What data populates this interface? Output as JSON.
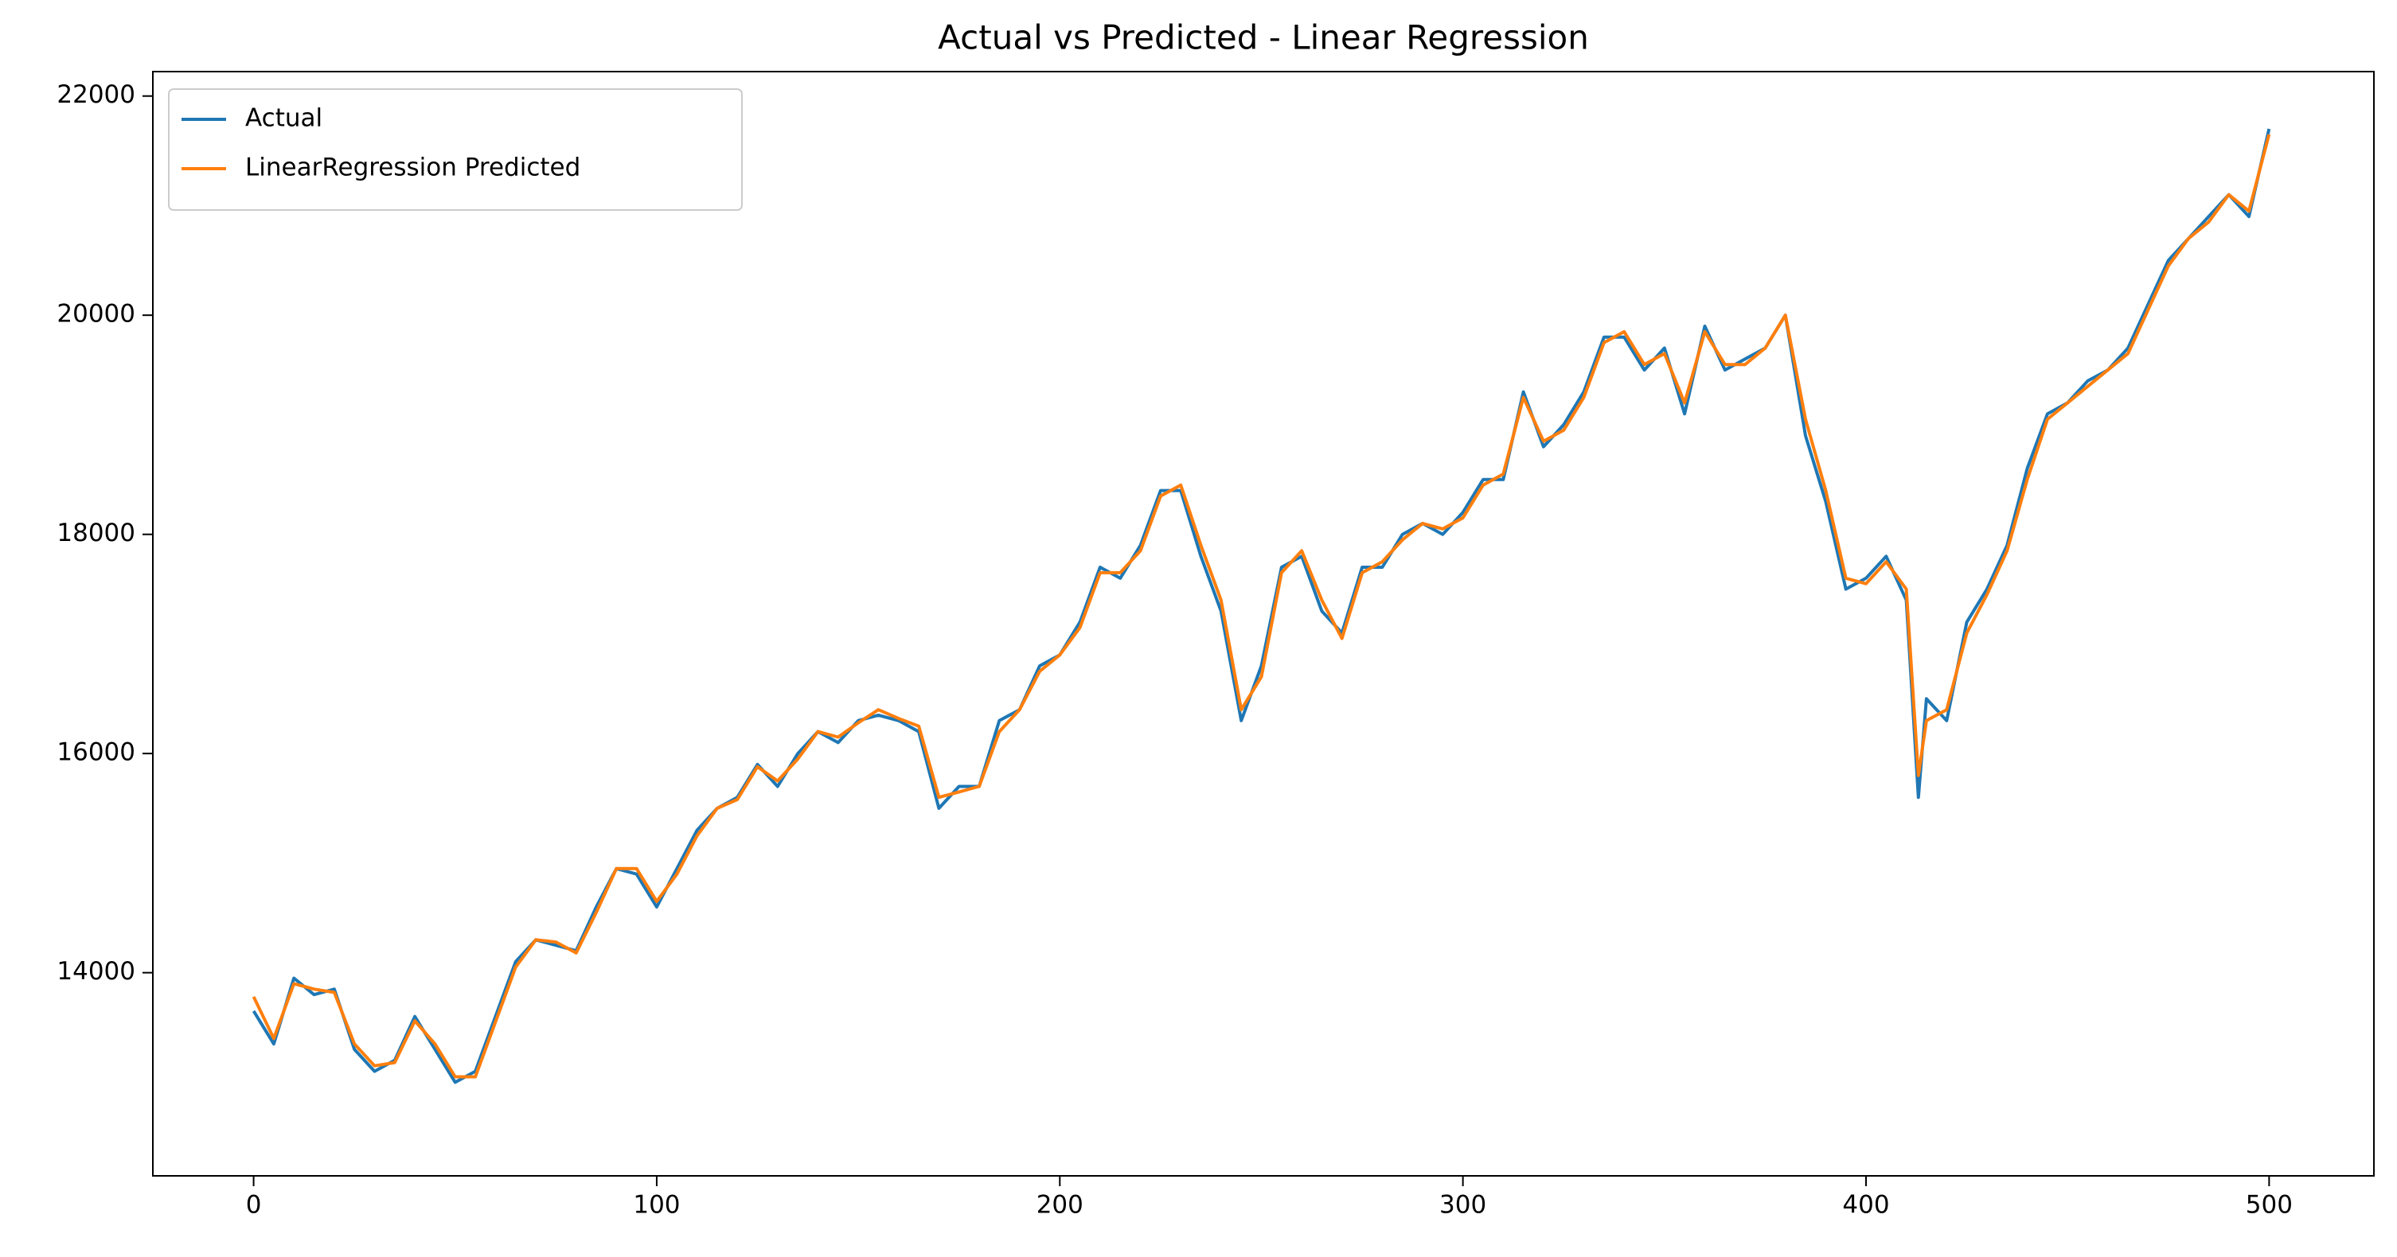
{
  "chart_data": {
    "type": "line",
    "title": "Actual vs Predicted - Linear Regression",
    "x": [
      0,
      5,
      10,
      15,
      20,
      25,
      30,
      35,
      40,
      45,
      50,
      55,
      60,
      65,
      70,
      75,
      80,
      85,
      90,
      95,
      100,
      105,
      110,
      115,
      120,
      125,
      130,
      135,
      140,
      145,
      150,
      155,
      160,
      165,
      170,
      175,
      180,
      185,
      190,
      195,
      200,
      205,
      210,
      215,
      220,
      225,
      230,
      235,
      240,
      245,
      250,
      255,
      260,
      265,
      270,
      275,
      280,
      285,
      290,
      295,
      300,
      305,
      310,
      315,
      320,
      325,
      330,
      335,
      340,
      345,
      350,
      355,
      360,
      365,
      370,
      375,
      380,
      385,
      390,
      395,
      400,
      405,
      410,
      413,
      415,
      420,
      425,
      430,
      435,
      440,
      445,
      450,
      455,
      460,
      465,
      470,
      475,
      480,
      485,
      490,
      495,
      500
    ],
    "series": [
      {
        "name": "Actual",
        "color": "#1f77b4",
        "values": [
          13650,
          13350,
          13950,
          13800,
          13850,
          13300,
          13100,
          13200,
          13600,
          13300,
          13000,
          13100,
          13600,
          14100,
          14300,
          14250,
          14200,
          14600,
          14950,
          14900,
          14600,
          14950,
          15300,
          15500,
          15600,
          15900,
          15700,
          16000,
          16200,
          16100,
          16300,
          16350,
          16300,
          16200,
          15500,
          15700,
          15700,
          16300,
          16400,
          16800,
          16900,
          17200,
          17700,
          17600,
          17900,
          18400,
          18400,
          17800,
          17300,
          16300,
          16800,
          17700,
          17800,
          17300,
          17100,
          17700,
          17700,
          18000,
          18100,
          18000,
          18200,
          18500,
          18500,
          19300,
          18800,
          19000,
          19300,
          19800,
          19800,
          19500,
          19700,
          19100,
          19900,
          19500,
          19600,
          19700,
          20000,
          18900,
          18300,
          17500,
          17600,
          17800,
          17400,
          15600,
          16500,
          16300,
          17200,
          17500,
          17900,
          18600,
          19100,
          19200,
          19400,
          19500,
          19700,
          20100,
          20500,
          20700,
          20900,
          21100,
          20900,
          21700
        ]
      },
      {
        "name": "LinearRegression Predicted",
        "color": "#ff7f0e",
        "values": [
          13780,
          13400,
          13900,
          13850,
          13820,
          13350,
          13150,
          13180,
          13560,
          13350,
          13050,
          13050,
          13550,
          14050,
          14300,
          14280,
          14180,
          14550,
          14950,
          14950,
          14650,
          14900,
          15250,
          15500,
          15580,
          15880,
          15750,
          15950,
          16200,
          16150,
          16280,
          16400,
          16320,
          16250,
          15600,
          15650,
          15700,
          16200,
          16400,
          16750,
          16900,
          17150,
          17650,
          17650,
          17850,
          18350,
          18450,
          17900,
          17400,
          16400,
          16700,
          17650,
          17850,
          17400,
          17050,
          17650,
          17750,
          17950,
          18100,
          18050,
          18150,
          18450,
          18550,
          19250,
          18850,
          18950,
          19250,
          19750,
          19850,
          19550,
          19650,
          19200,
          19850,
          19550,
          19550,
          19700,
          20000,
          19050,
          18400,
          17600,
          17550,
          17750,
          17500,
          15800,
          16300,
          16400,
          17100,
          17450,
          17850,
          18500,
          19050,
          19200,
          19350,
          19500,
          19650,
          20050,
          20450,
          20700,
          20850,
          21100,
          20950,
          21650
        ]
      }
    ],
    "xlim": [
      -25,
      526
    ],
    "ylim": [
      12146,
      22223
    ],
    "xticks": [
      0,
      100,
      200,
      300,
      400,
      500
    ],
    "yticks": [
      14000,
      16000,
      18000,
      20000,
      22000
    ],
    "legend": "upper left"
  }
}
